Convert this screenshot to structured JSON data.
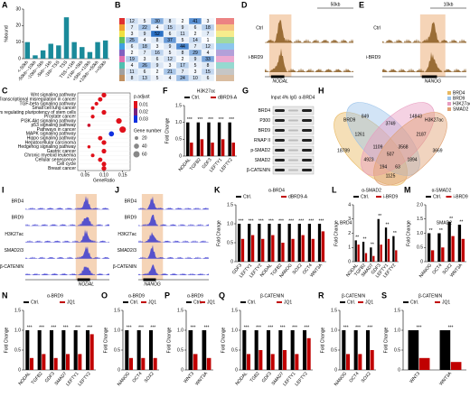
{
  "chart_data": [
    {
      "panel": "A",
      "type": "bar",
      "ylabel": "%bound",
      "color": "#1a8a9a",
      "categories": [
        "<-50kb",
        "-50kb~-10kb",
        "-10kb~-5kb",
        "-5kb~-1kb",
        "-1kb~TSS",
        "TSS",
        "TSS~+1kb",
        "+1kb~+5kb",
        "+5kb~+10kb",
        "+10kb~+50kb",
        ">+50kb"
      ],
      "values": [
        10,
        2,
        5,
        9,
        8,
        25,
        10,
        7,
        4,
        10,
        11
      ],
      "ylim": [
        0,
        30
      ],
      "yticks": [
        0,
        10,
        20,
        30
      ]
    },
    {
      "panel": "C",
      "type": "dot",
      "xlabel": "GeneRatio",
      "categories": [
        "Wnt signaling pathway",
        "Transcriptional misregulation in cancer",
        "TGF-beta signaling pathway",
        "Small cell lung cancer",
        "Signaling pathways regulating pluripotency of stem cells",
        "Prostate cancer",
        "PI3K-Akt signaling pathway",
        "p53 signaling pathway",
        "Pathways in cancer",
        "MAPK signaling pathway",
        "Hippo signaling pathway",
        "Hepatocellular carcinoma",
        "Hedgehog signaling pathway",
        "Gastric cancer",
        "Chronic myeloid leukemia",
        "Cellular senescence",
        "Cell cycle",
        "Breast cancer"
      ],
      "gene_ratio": [
        0.1,
        0.09,
        0.08,
        0.07,
        0.1,
        0.07,
        0.14,
        0.06,
        0.15,
        0.12,
        0.09,
        0.1,
        0.06,
        0.1,
        0.07,
        0.09,
        0.1,
        0.1
      ],
      "p_adjust": [
        0.005,
        0.006,
        0.004,
        0.005,
        0.003,
        0.006,
        0.008,
        0.012,
        0.004,
        0.03,
        0.005,
        0.006,
        0.007,
        0.006,
        0.005,
        0.007,
        0.006,
        0.005
      ],
      "gene_number": [
        34,
        30,
        22,
        20,
        33,
        22,
        48,
        16,
        62,
        40,
        30,
        34,
        15,
        33,
        20,
        30,
        32,
        33
      ],
      "xlim": [
        0.03,
        0.17
      ],
      "xticks": [
        0.05,
        {
          "value": 0.1,
          "label": "0.10"
        },
        0.15
      ],
      "color_title": "p.adjust",
      "color_ticks": [
        0.01,
        0.02,
        0.03
      ],
      "color_low": "#e0101a",
      "color_high": "#1030e0",
      "size_title": "Gene number",
      "size_ticks": [
        20,
        40,
        60
      ]
    },
    {
      "panel": "F",
      "type": "bar",
      "title": "H3K27ac",
      "ylabel": "Fold Change",
      "significance": "***",
      "categories": [
        "NODAL",
        "TGFB2",
        "GDF3",
        "LEFTY1",
        "LEFTY2"
      ],
      "series": [
        {
          "name": "Ctrl.",
          "color": "#000000",
          "values": [
            1,
            1,
            1,
            1,
            1
          ]
        },
        {
          "name": "dBRD9-A",
          "color": "#c00000",
          "values": [
            0.4,
            0.5,
            0.4,
            0.5,
            0.4
          ]
        }
      ],
      "ylim": [
        0,
        1.5
      ],
      "yticks": [
        0,
        0.5,
        {
          "value": 1,
          "label": "1.0"
        },
        1.5
      ]
    },
    {
      "panel": "K",
      "type": "bar",
      "title": "α-BRD4",
      "ylabel": "Fold Change",
      "significance": "***",
      "categories": [
        "GDF3",
        "LEFTY1",
        "LEFTY2",
        "NODAL",
        "TGFB2",
        "NANOG",
        "SOX2",
        "OCT4",
        "WNT3A"
      ],
      "series": [
        {
          "name": "Ctrl.",
          "color": "#000000",
          "values": [
            1,
            1,
            1,
            1,
            1,
            1,
            1,
            1,
            1
          ]
        },
        {
          "name": "dBRD9-A",
          "color": "#c00000",
          "values": [
            0.6,
            0.7,
            0.6,
            0.7,
            0.5,
            0.6,
            0.7,
            0.6,
            0.8
          ]
        }
      ],
      "ylim": [
        0,
        1.5
      ],
      "yticks": [
        0,
        0.5,
        {
          "value": 1,
          "label": "1.0"
        },
        1.5
      ]
    },
    {
      "panel": "L",
      "type": "bar",
      "title": "α-SMAD2",
      "ylabel": "Fold Change",
      "significance": "**",
      "categories": [
        "NODAL",
        "TGFB2",
        "SMAD7",
        "GDF3",
        "LEFTY1",
        "LEFTY2"
      ],
      "series": [
        {
          "name": "Ctrl.",
          "color": "#000000",
          "values": [
            1.5,
            1.4,
            1,
            3,
            2.4,
            1.8
          ]
        },
        {
          "name": "i-BRD9",
          "color": "#c00000",
          "values": [
            1.2,
            0.6,
            0.4,
            1.2,
            1.6,
            0.8
          ]
        }
      ],
      "ylim": [
        0,
        4
      ],
      "yticks": [
        0,
        1,
        2,
        3,
        4
      ]
    },
    {
      "panel": "M",
      "type": "bar",
      "title": "α-SMAD2",
      "ylabel": "Fold Change",
      "significance": "**",
      "categories": [
        "NANOG",
        "OCT4",
        "SOX2",
        "WNT3A"
      ],
      "series": [
        {
          "name": "Ctrl.",
          "color": "#000000",
          "values": [
            1,
            1,
            1.4,
            1.3
          ]
        },
        {
          "name": "i-BRD9",
          "color": "#c00000",
          "values": [
            0.4,
            0.5,
            0.9,
            0.8
          ]
        }
      ],
      "ylim": [
        0,
        2
      ],
      "yticks": [
        0,
        0.5,
        {
          "value": 1,
          "label": "1.0"
        },
        1.5,
        {
          "value": 2,
          "label": "2.0"
        }
      ]
    },
    {
      "panel": "N",
      "type": "bar",
      "title": "α-BRD9",
      "ylabel": "Fold Change",
      "significance": "***",
      "categories": [
        "NODAL",
        "TGFB2",
        "GDF3",
        "SMAD7",
        "LEFTY1",
        "LEFTY2"
      ],
      "series": [
        {
          "name": "Ctrl.",
          "color": "#000000",
          "values": [
            1,
            1,
            1,
            1,
            1,
            1
          ]
        },
        {
          "name": "JQ1",
          "color": "#c00000",
          "values": [
            0.3,
            0.4,
            0.3,
            0.4,
            0.4,
            0.9
          ]
        }
      ],
      "ylim": [
        0,
        1.5
      ],
      "yticks": [
        0,
        0.5,
        {
          "value": 1,
          "label": "1.0"
        },
        1.5
      ]
    },
    {
      "panel": "O",
      "type": "bar",
      "title": "α-BRD9",
      "ylabel": "Fold Change",
      "significance": "***",
      "categories": [
        "NANOG",
        "OCT4",
        "SOX2"
      ],
      "series": [
        {
          "name": "Ctrl.",
          "color": "#000000",
          "values": [
            1,
            1,
            1
          ]
        },
        {
          "name": "JQ1",
          "color": "#c00000",
          "values": [
            0.3,
            0.3,
            0.3
          ]
        }
      ],
      "ylim": [
        0,
        1.5
      ],
      "yticks": [
        0,
        0.5,
        {
          "value": 1,
          "label": "1.0"
        },
        1.5
      ]
    },
    {
      "panel": "P",
      "type": "bar",
      "title": "α-BRD9",
      "ylabel": "Fold Change",
      "significance": "***",
      "categories": [
        "WNT3",
        "WNT3A"
      ],
      "series": [
        {
          "name": "Ctrl.",
          "color": "#000000",
          "values": [
            1,
            1
          ]
        },
        {
          "name": "JQ1",
          "color": "#c00000",
          "values": [
            0.4,
            0.3
          ]
        }
      ],
      "ylim": [
        0,
        1.5
      ],
      "yticks": [
        0,
        0.5,
        {
          "value": 1,
          "label": "1.0"
        },
        1.5
      ]
    },
    {
      "panel": "Q",
      "type": "bar",
      "title": "β-CATENIN",
      "ylabel": "Fold Change",
      "significance": "***",
      "categories": [
        "NODAL",
        "TGB2",
        "GDF3",
        "SMAD7",
        "LEFTY1",
        "LEFTY2"
      ],
      "series": [
        {
          "name": "Ctrl.",
          "color": "#000000",
          "values": [
            1,
            1,
            1,
            1,
            1,
            1
          ]
        },
        {
          "name": "JQ1",
          "color": "#c00000",
          "values": [
            0.4,
            0.5,
            0.4,
            0.5,
            0.4,
            0.8
          ]
        }
      ],
      "ylim": [
        0,
        1.5
      ],
      "yticks": [
        0,
        0.5,
        {
          "value": 1,
          "label": "1.0"
        },
        1.5
      ]
    },
    {
      "panel": "R",
      "type": "bar",
      "title": "β-CATENIN",
      "ylabel": "Fold Change",
      "significance": "***",
      "categories": [
        "NANOG",
        "OCT4",
        "SOX2"
      ],
      "series": [
        {
          "name": "Ctrl.",
          "color": "#000000",
          "values": [
            1,
            1,
            1
          ]
        },
        {
          "name": "JQ1",
          "color": "#c00000",
          "values": [
            0.4,
            0.4,
            0.5
          ]
        }
      ],
      "ylim": [
        0,
        1.5
      ],
      "yticks": [
        0,
        0.5,
        {
          "value": 1,
          "label": "1.0"
        },
        1.5
      ]
    },
    {
      "panel": "S",
      "type": "bar",
      "title": "β-CATENIN",
      "ylabel": "Fold Change",
      "significance": "***",
      "categories": [
        "WNT3",
        "WNT3A"
      ],
      "series": [
        {
          "name": "Ctrl.",
          "color": "#000000",
          "values": [
            1,
            1
          ]
        },
        {
          "name": "JQ1",
          "color": "#c00000",
          "values": [
            0.3,
            0.2
          ]
        }
      ],
      "ylim": [
        0,
        1.5
      ],
      "yticks": [
        0,
        0.5,
        {
          "value": 1,
          "label": "1.0"
        },
        1.5
      ]
    }
  ],
  "panels": {
    "B": {
      "label": "B",
      "cells": [
        [
          12,
          5,
          30,
          8,
          2,
          41,
          3
        ],
        [
          7,
          22,
          4,
          15,
          9,
          6,
          18
        ],
        [
          3,
          9,
          52,
          6,
          11,
          2,
          7
        ],
        [
          25,
          4,
          8,
          37,
          5,
          14,
          1
        ],
        [
          6,
          18,
          3,
          9,
          44,
          7,
          12
        ],
        [
          2,
          7,
          16,
          5,
          8,
          29,
          4
        ],
        [
          19,
          3,
          6,
          12,
          2,
          9,
          33
        ],
        [
          4,
          26,
          9,
          3,
          17,
          5,
          8
        ],
        [
          11,
          6,
          2,
          21,
          7,
          3,
          15
        ],
        [
          8,
          13,
          5,
          4,
          24,
          10,
          6
        ]
      ]
    },
    "D": {
      "label": "D",
      "scale": "50kb",
      "tracks": [
        "Ctrl",
        "i-BRD9"
      ],
      "gene": "NODAL"
    },
    "E": {
      "label": "E",
      "scale": "10kb",
      "tracks": [
        "Ctrl",
        "i-BRD9"
      ],
      "gene": "NANOG"
    },
    "G": {
      "label": "G",
      "columns": [
        "Input 4%",
        "IgG",
        "α-BRD4"
      ],
      "rows": [
        "BRD4",
        "P300",
        "BRD9",
        "RNAP II",
        "p-SMAD2",
        "SMAD2",
        "β-CATENIN"
      ]
    },
    "H": {
      "label": "H",
      "sets": [
        {
          "name": "BRD4",
          "color": "#e8b860"
        },
        {
          "name": "BRD9",
          "color": "#9cc4ea"
        },
        {
          "name": "H3K27ac",
          "color": "#e89cc0"
        },
        {
          "name": "SMAD2",
          "color": "#e0a070"
        }
      ],
      "regions": [
        18789,
        849,
        14843,
        3669,
        1261,
        3749,
        2187,
        4923,
        1894,
        1125,
        1109,
        3568,
        194,
        63,
        507
      ]
    },
    "I": {
      "label": "I",
      "tracks": [
        "BRD4",
        "BRD9",
        "H3K27ac",
        "SMAD2/3",
        "β-CATENIN"
      ],
      "gene": "NODAL"
    },
    "J": {
      "label": "J",
      "tracks": [
        "BRD4",
        "BRD9",
        "H3K27ac",
        "SMAD2/3",
        "β-CATENIN"
      ],
      "gene": "NANOG"
    }
  }
}
